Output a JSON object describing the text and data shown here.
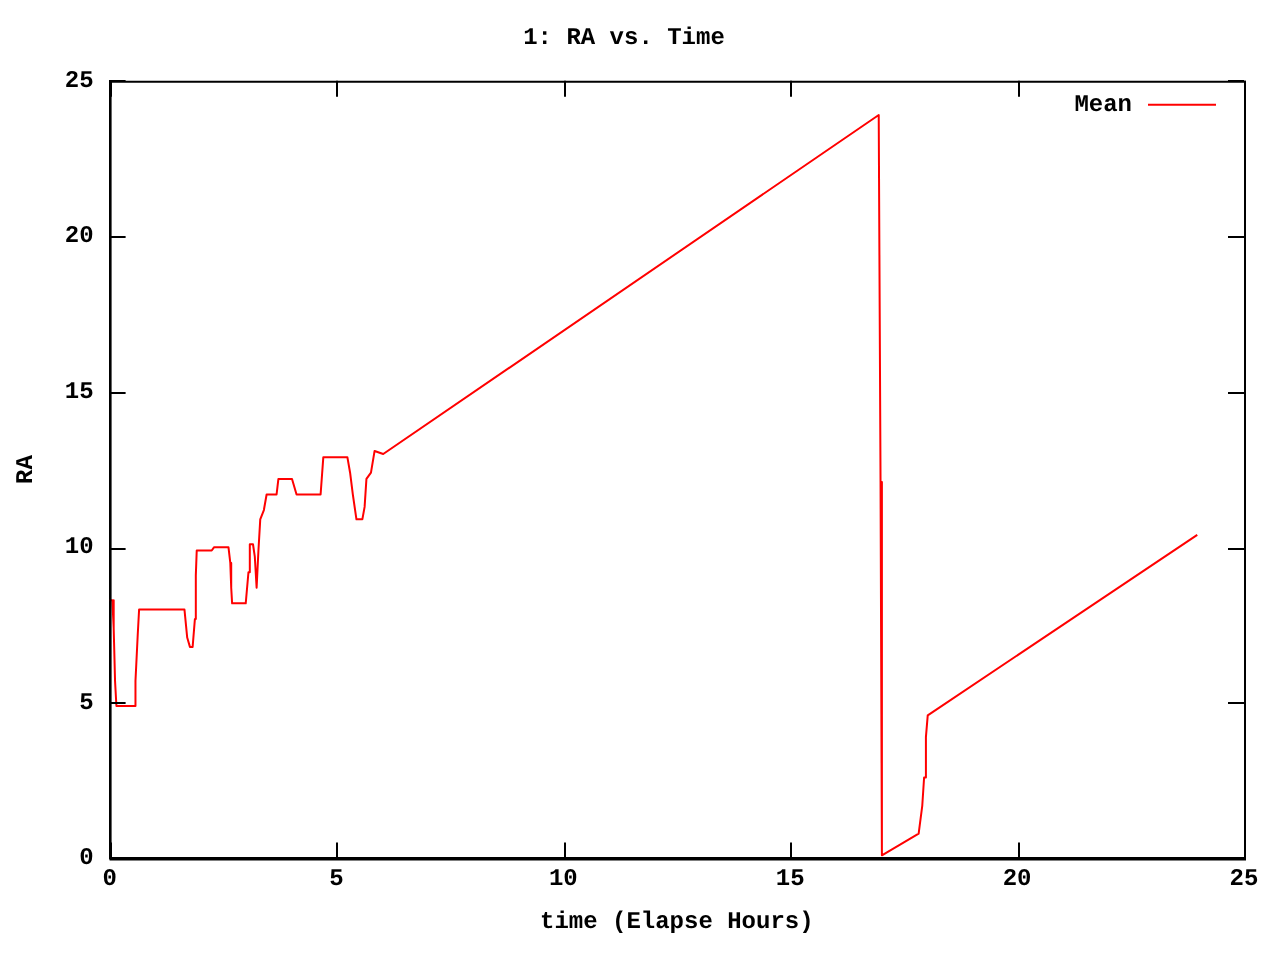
{
  "chart_data": {
    "type": "line",
    "title": "1: RA vs. Time",
    "xlabel": "time (Elapse Hours)",
    "ylabel": "RA",
    "xlim": [
      0,
      25
    ],
    "xticks": [
      0,
      5,
      10,
      15,
      20,
      25
    ],
    "ylim": [
      0,
      25
    ],
    "yticks": [
      0,
      5,
      10,
      15,
      20,
      25
    ],
    "grid": false,
    "legend": "top right",
    "marker": "none",
    "line_style": "solid",
    "series": [
      {
        "name": "Mean",
        "color": "#ff0000",
        "x": [
          0,
          0.06,
          0.09,
          0.12,
          0.15,
          0.55,
          0.57,
          0.62,
          0.65,
          1.65,
          1.71,
          1.77,
          1.83,
          1.88,
          1.9,
          1.92,
          2.25,
          2.3,
          2.62,
          2.66,
          2.68,
          2.7,
          3.0,
          3.06,
          3.09,
          3.16,
          3.2,
          3.24,
          3.28,
          3.32,
          3.4,
          3.46,
          3.68,
          3.72,
          4.02,
          4.12,
          4.65,
          4.71,
          5.24,
          5.3,
          5.36,
          5.44,
          5.57,
          5.62,
          5.66,
          5.76,
          5.84,
          6.03,
          16.95,
          16.99,
          17.02,
          17.83,
          17.91,
          17.95,
          17.99,
          18.03,
          23.97
        ],
        "values": [
          8.3,
          8.3,
          7.4,
          5.7,
          4.9,
          4.9,
          5.7,
          7.2,
          8.0,
          8.0,
          7.1,
          6.8,
          6.8,
          7.7,
          9.1,
          9.9,
          9.9,
          10.0,
          10.0,
          9.5,
          8.7,
          8.2,
          8.2,
          9.2,
          10.1,
          10.1,
          9.7,
          8.7,
          9.9,
          10.9,
          11.2,
          11.7,
          11.7,
          12.2,
          12.2,
          11.7,
          11.7,
          12.9,
          12.9,
          12.4,
          11.7,
          10.9,
          10.9,
          11.3,
          12.2,
          12.4,
          13.1,
          13.0,
          23.9,
          12.1,
          0.1,
          0.8,
          1.7,
          2.6,
          3.9,
          4.6,
          10.4
        ]
      }
    ]
  }
}
